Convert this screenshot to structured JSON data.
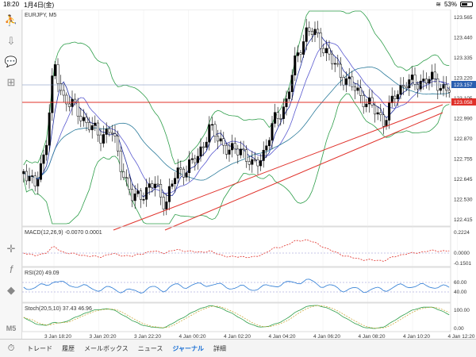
{
  "status": {
    "time": "18:20",
    "date": "1月4日(金)",
    "battery_percent": "53%"
  },
  "toolbar": {
    "icons": [
      "person-icon",
      "cloud-down-icon",
      "chat-icon",
      "add-panel-icon",
      "crosshair-icon",
      "function-icon",
      "shapes-icon",
      "timeframe-label"
    ],
    "timeframe": "M5"
  },
  "chart": {
    "symbol_label": "EURJPY, M5",
    "macd_label": "MACD(12,26,9) -0.0070 0.0001",
    "rsi_label": "RSI(20) 49.09",
    "stoch_label": "Stoch(20,5,10) 37.43 46.96",
    "current_price": "123.157",
    "line_price": "123.058",
    "price_axis": [
      "123.565",
      "123.440",
      "123.335",
      "123.220",
      "123.105",
      "122.990",
      "122.870",
      "122.755",
      "122.645",
      "122.530",
      "122.415"
    ],
    "macd_axis": [
      "0.2224",
      "0.0000",
      "-0.1501"
    ],
    "rsi_axis": [
      "60.00",
      "40.00"
    ],
    "stoch_axis": [
      "100.00",
      "0.00"
    ],
    "time_axis": [
      "3 Jan 18:20",
      "3 Jan 20:20",
      "3 Jan 22:20",
      "4 Jan 00:20",
      "4 Jan 02:20",
      "4 Jan 04:20",
      "4 Jan 06:20",
      "4 Jan 08:20",
      "4 Jan 10:20",
      "4 Jan 12:20"
    ],
    "colors": {
      "bull": "#000000",
      "bear": "#000000",
      "bollinger": "#2e9e4a",
      "ma": "#1f2e9e",
      "hline": "#e0312a",
      "trend": "#e0312a",
      "rsi": "#2a7ad4",
      "stoch": "#2e9e4a",
      "macd": "#e0312a",
      "price_box": "#2a5fb0"
    }
  },
  "tabs": [
    {
      "label": "トレード",
      "active": false
    },
    {
      "label": "履歴",
      "active": false
    },
    {
      "label": "メールボックス",
      "active": false
    },
    {
      "label": "ニュース",
      "active": false
    },
    {
      "label": "ジャーナル",
      "active": true
    },
    {
      "label": "詳細",
      "active": false
    }
  ]
}
